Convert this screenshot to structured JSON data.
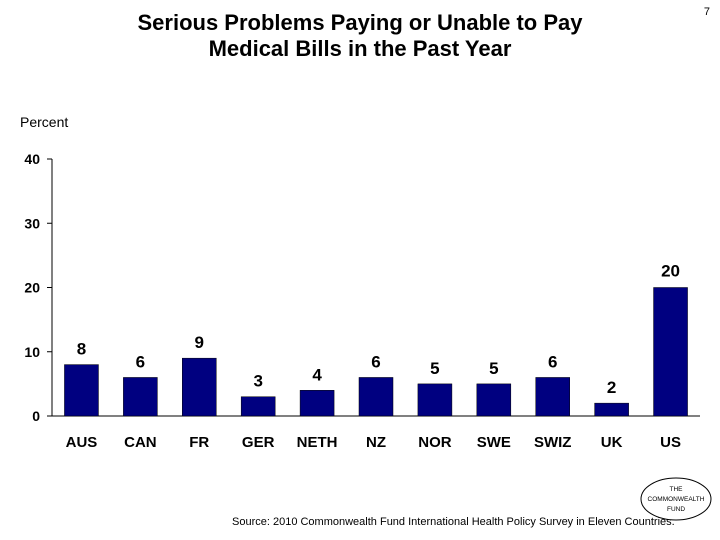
{
  "page_number": "7",
  "title_lines": [
    "Serious Problems Paying or Unable to Pay",
    "Medical Bills in the Past Year"
  ],
  "y_unit": "Percent",
  "source": "Source: 2010 Commonwealth Fund International Health Policy Survey in Eleven Countries.",
  "logo_lines": [
    "THE",
    "COMMONWEALTH",
    "FUND"
  ],
  "chart_data": {
    "type": "bar",
    "title": "Serious Problems Paying or Unable to Pay Medical Bills in the Past Year",
    "ylabel": "Percent",
    "xlabel": "",
    "categories": [
      "AUS",
      "CAN",
      "FR",
      "GER",
      "NETH",
      "NZ",
      "NOR",
      "SWE",
      "SWIZ",
      "UK",
      "US"
    ],
    "values": [
      8,
      6,
      9,
      3,
      4,
      6,
      5,
      5,
      6,
      2,
      20
    ],
    "ylim": [
      0,
      40
    ],
    "yticks": [
      0,
      10,
      20,
      30,
      40
    ],
    "bar_color": "#000080",
    "grid": false,
    "legend": "none"
  }
}
